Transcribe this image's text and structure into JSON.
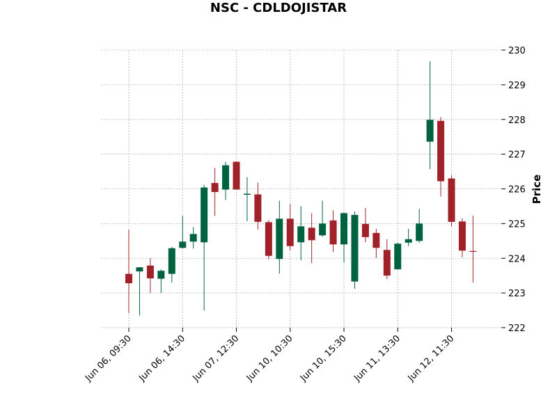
{
  "chart_data": {
    "type": "candlestick",
    "title": "NSC - CDLDOJISTAR",
    "xlabel": "",
    "ylabel": "Price",
    "ylim": [
      222,
      230
    ],
    "y_ticks": [
      222,
      223,
      224,
      225,
      226,
      227,
      228,
      229,
      230
    ],
    "x_tick_labels": [
      {
        "index": 0,
        "label": "Jun 06, 09:30"
      },
      {
        "index": 5,
        "label": "Jun 06, 14:30"
      },
      {
        "index": 10,
        "label": "Jun 07, 12:30"
      },
      {
        "index": 15,
        "label": "Jun 10, 10:30"
      },
      {
        "index": 20,
        "label": "Jun 10, 15:30"
      },
      {
        "index": 25,
        "label": "Jun 11, 13:30"
      },
      {
        "index": 30,
        "label": "Jun 12, 11:30"
      }
    ],
    "grid": true,
    "y_axis_side": "right",
    "colors": {
      "up": "#006340",
      "down": "#a02128"
    },
    "candles": [
      {
        "open": 223.55,
        "high": 224.82,
        "low": 222.42,
        "close": 223.28
      },
      {
        "open": 223.62,
        "high": 223.75,
        "low": 222.35,
        "close": 223.74
      },
      {
        "open": 223.79,
        "high": 224.0,
        "low": 223.0,
        "close": 223.42
      },
      {
        "open": 223.41,
        "high": 223.68,
        "low": 223.0,
        "close": 223.64
      },
      {
        "open": 223.55,
        "high": 224.33,
        "low": 223.3,
        "close": 224.29
      },
      {
        "open": 224.3,
        "high": 225.22,
        "low": 224.28,
        "close": 224.48
      },
      {
        "open": 224.48,
        "high": 224.9,
        "low": 224.28,
        "close": 224.7
      },
      {
        "open": 224.46,
        "high": 226.12,
        "low": 222.5,
        "close": 226.04
      },
      {
        "open": 226.17,
        "high": 226.6,
        "low": 225.22,
        "close": 225.91
      },
      {
        "open": 225.98,
        "high": 226.78,
        "low": 225.68,
        "close": 226.68
      },
      {
        "open": 226.78,
        "high": 226.8,
        "low": 225.98,
        "close": 225.98
      },
      {
        "open": 225.83,
        "high": 226.34,
        "low": 225.07,
        "close": 225.86
      },
      {
        "open": 225.84,
        "high": 226.18,
        "low": 224.83,
        "close": 225.05
      },
      {
        "open": 225.04,
        "high": 225.1,
        "low": 223.97,
        "close": 224.07
      },
      {
        "open": 223.98,
        "high": 225.66,
        "low": 223.56,
        "close": 225.14
      },
      {
        "open": 225.14,
        "high": 225.56,
        "low": 224.23,
        "close": 224.35
      },
      {
        "open": 224.46,
        "high": 225.5,
        "low": 223.94,
        "close": 224.92
      },
      {
        "open": 224.88,
        "high": 225.3,
        "low": 223.86,
        "close": 224.52
      },
      {
        "open": 224.66,
        "high": 225.66,
        "low": 224.62,
        "close": 225.0
      },
      {
        "open": 225.09,
        "high": 225.38,
        "low": 224.18,
        "close": 224.4
      },
      {
        "open": 224.4,
        "high": 225.32,
        "low": 223.88,
        "close": 225.3
      },
      {
        "open": 223.33,
        "high": 225.35,
        "low": 223.12,
        "close": 225.25
      },
      {
        "open": 224.99,
        "high": 225.45,
        "low": 224.46,
        "close": 224.61
      },
      {
        "open": 224.73,
        "high": 224.85,
        "low": 224.01,
        "close": 224.3
      },
      {
        "open": 224.24,
        "high": 224.55,
        "low": 223.4,
        "close": 223.5
      },
      {
        "open": 223.68,
        "high": 224.45,
        "low": 223.68,
        "close": 224.42
      },
      {
        "open": 224.45,
        "high": 224.85,
        "low": 224.35,
        "close": 224.55
      },
      {
        "open": 224.5,
        "high": 225.42,
        "low": 224.45,
        "close": 225.0
      },
      {
        "open": 227.36,
        "high": 229.68,
        "low": 226.57,
        "close": 227.99
      },
      {
        "open": 227.96,
        "high": 228.07,
        "low": 225.78,
        "close": 226.22
      },
      {
        "open": 226.3,
        "high": 226.4,
        "low": 224.92,
        "close": 225.05
      },
      {
        "open": 225.06,
        "high": 225.15,
        "low": 224.03,
        "close": 224.22
      },
      {
        "open": 224.21,
        "high": 225.23,
        "low": 223.3,
        "close": 224.2
      }
    ]
  }
}
